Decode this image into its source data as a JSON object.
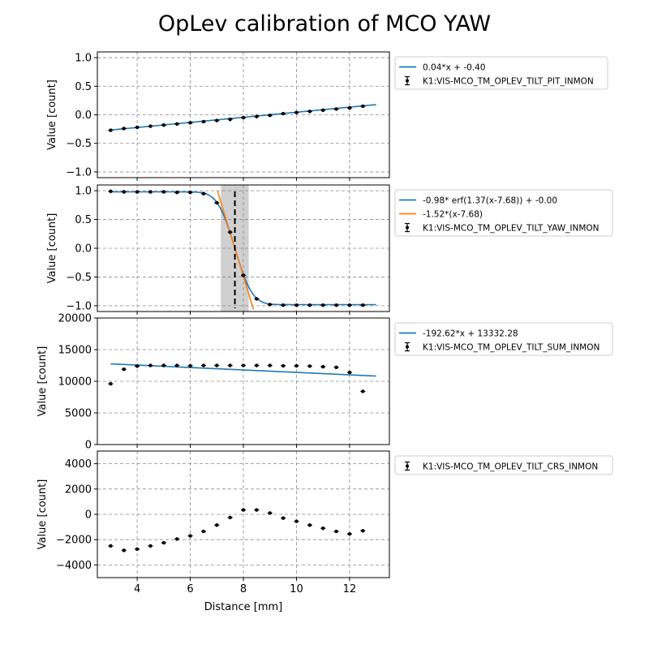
{
  "chart_data": {
    "title": "OpLev calibration of MCO YAW",
    "xlabel": "Distance [mm]",
    "xlim": [
      2.5,
      13.5
    ],
    "xticks": [
      4,
      6,
      8,
      10,
      12
    ],
    "colors": {
      "fit": "#1f77b4",
      "linear": "#ff7f0e",
      "points": "#000000",
      "grid": "#8a8a8a",
      "shade": "#c8c8c8"
    },
    "panels": [
      {
        "type": "scatter",
        "ylabel": "Value [count]",
        "ylim": [
          -1.1,
          1.1
        ],
        "yticks": [
          -1.0,
          -0.5,
          0.0,
          0.5,
          1.0
        ],
        "tick_format": "0.0",
        "legend": [
          "0.04*x + -0.40",
          "K1:VIS-MCO_TM_OPLEV_TILT_PIT_INMON"
        ],
        "lines": [
          {
            "kind": "linear",
            "a": 0.0445,
            "b": -0.4,
            "range": [
              3,
              13
            ],
            "color": "#1f77b4"
          }
        ],
        "points": {
          "x": [
            3,
            3.5,
            4,
            4.5,
            5,
            5.5,
            6,
            6.5,
            7,
            7.5,
            8,
            8.5,
            9,
            9.5,
            10,
            10.5,
            11,
            11.5,
            12,
            12.5
          ],
          "y": [
            -0.27,
            -0.24,
            -0.22,
            -0.2,
            -0.18,
            -0.16,
            -0.14,
            -0.12,
            -0.1,
            -0.08,
            -0.05,
            -0.03,
            -0.01,
            0.02,
            0.04,
            0.06,
            0.08,
            0.1,
            0.12,
            0.15
          ]
        }
      },
      {
        "type": "scatter",
        "ylabel": "Value [count]",
        "ylim": [
          -1.1,
          1.1
        ],
        "yticks": [
          -1.0,
          -0.5,
          0.0,
          0.5,
          1.0
        ],
        "tick_format": "0.0",
        "legend": [
          "-0.98* erf(1.37(x-7.68)) + -0.00",
          "-1.52*(x-7.68)",
          "K1:VIS-MCO_TM_OPLEV_TILT_YAW_INMON"
        ],
        "shade": [
          7.15,
          8.2
        ],
        "vline": 7.68,
        "lines": [
          {
            "kind": "erf",
            "A": -0.98,
            "k": 1.37,
            "x0": 7.68,
            "c": 0.0,
            "range": [
              3,
              13
            ],
            "color": "#1f77b4"
          },
          {
            "kind": "linear",
            "a": -1.52,
            "b": 11.6736,
            "range": [
              7.02,
              8.38
            ],
            "color": "#ff7f0e"
          }
        ],
        "points": {
          "x": [
            3,
            3.5,
            4,
            4.5,
            5,
            5.5,
            6,
            6.5,
            7,
            7.5,
            8,
            8.5,
            9,
            9.5,
            10,
            10.5,
            11,
            11.5,
            12,
            12.5
          ],
          "y": [
            0.99,
            0.98,
            0.98,
            0.98,
            0.98,
            0.97,
            0.97,
            0.95,
            0.79,
            0.28,
            -0.47,
            -0.88,
            -0.98,
            -0.99,
            -0.99,
            -0.99,
            -0.99,
            -0.99,
            -0.99,
            -0.99
          ]
        }
      },
      {
        "type": "scatter",
        "ylabel": "Value [count]",
        "ylim": [
          0,
          20000
        ],
        "yticks": [
          0,
          5000,
          10000,
          15000,
          20000
        ],
        "tick_format": "0",
        "legend": [
          "-192.62*x + 13332.28",
          "K1:VIS-MCO_TM_OPLEV_TILT_SUM_INMON"
        ],
        "lines": [
          {
            "kind": "linear",
            "a": -192.62,
            "b": 13332.28,
            "range": [
              3,
              13
            ],
            "color": "#1f77b4"
          }
        ],
        "points": {
          "x": [
            3,
            3.5,
            4,
            4.5,
            5,
            5.5,
            6,
            6.5,
            7,
            7.5,
            8,
            8.5,
            9,
            9.5,
            10,
            10.5,
            11,
            11.5,
            12,
            12.5
          ],
          "y": [
            9600,
            11900,
            12400,
            12500,
            12500,
            12500,
            12450,
            12500,
            12500,
            12500,
            12500,
            12500,
            12500,
            12450,
            12450,
            12400,
            12300,
            12200,
            11400,
            8400
          ]
        }
      },
      {
        "type": "scatter",
        "ylabel": "Value [count]",
        "ylim": [
          -5000,
          5000
        ],
        "yticks": [
          -4000,
          -2000,
          0,
          2000,
          4000
        ],
        "tick_format": "0",
        "legend": [
          "K1:VIS-MCO_TM_OPLEV_TILT_CRS_INMON"
        ],
        "lines": [],
        "points": {
          "x": [
            3,
            3.5,
            4,
            4.5,
            5,
            5.5,
            6,
            6.5,
            7,
            7.5,
            8,
            8.5,
            9,
            9.5,
            10,
            10.5,
            11,
            11.5,
            12,
            12.5
          ],
          "y": [
            -2500,
            -2850,
            -2750,
            -2500,
            -2250,
            -1950,
            -1700,
            -1350,
            -850,
            -250,
            350,
            350,
            100,
            -300,
            -550,
            -850,
            -1100,
            -1350,
            -1550,
            -1300
          ]
        }
      }
    ]
  }
}
